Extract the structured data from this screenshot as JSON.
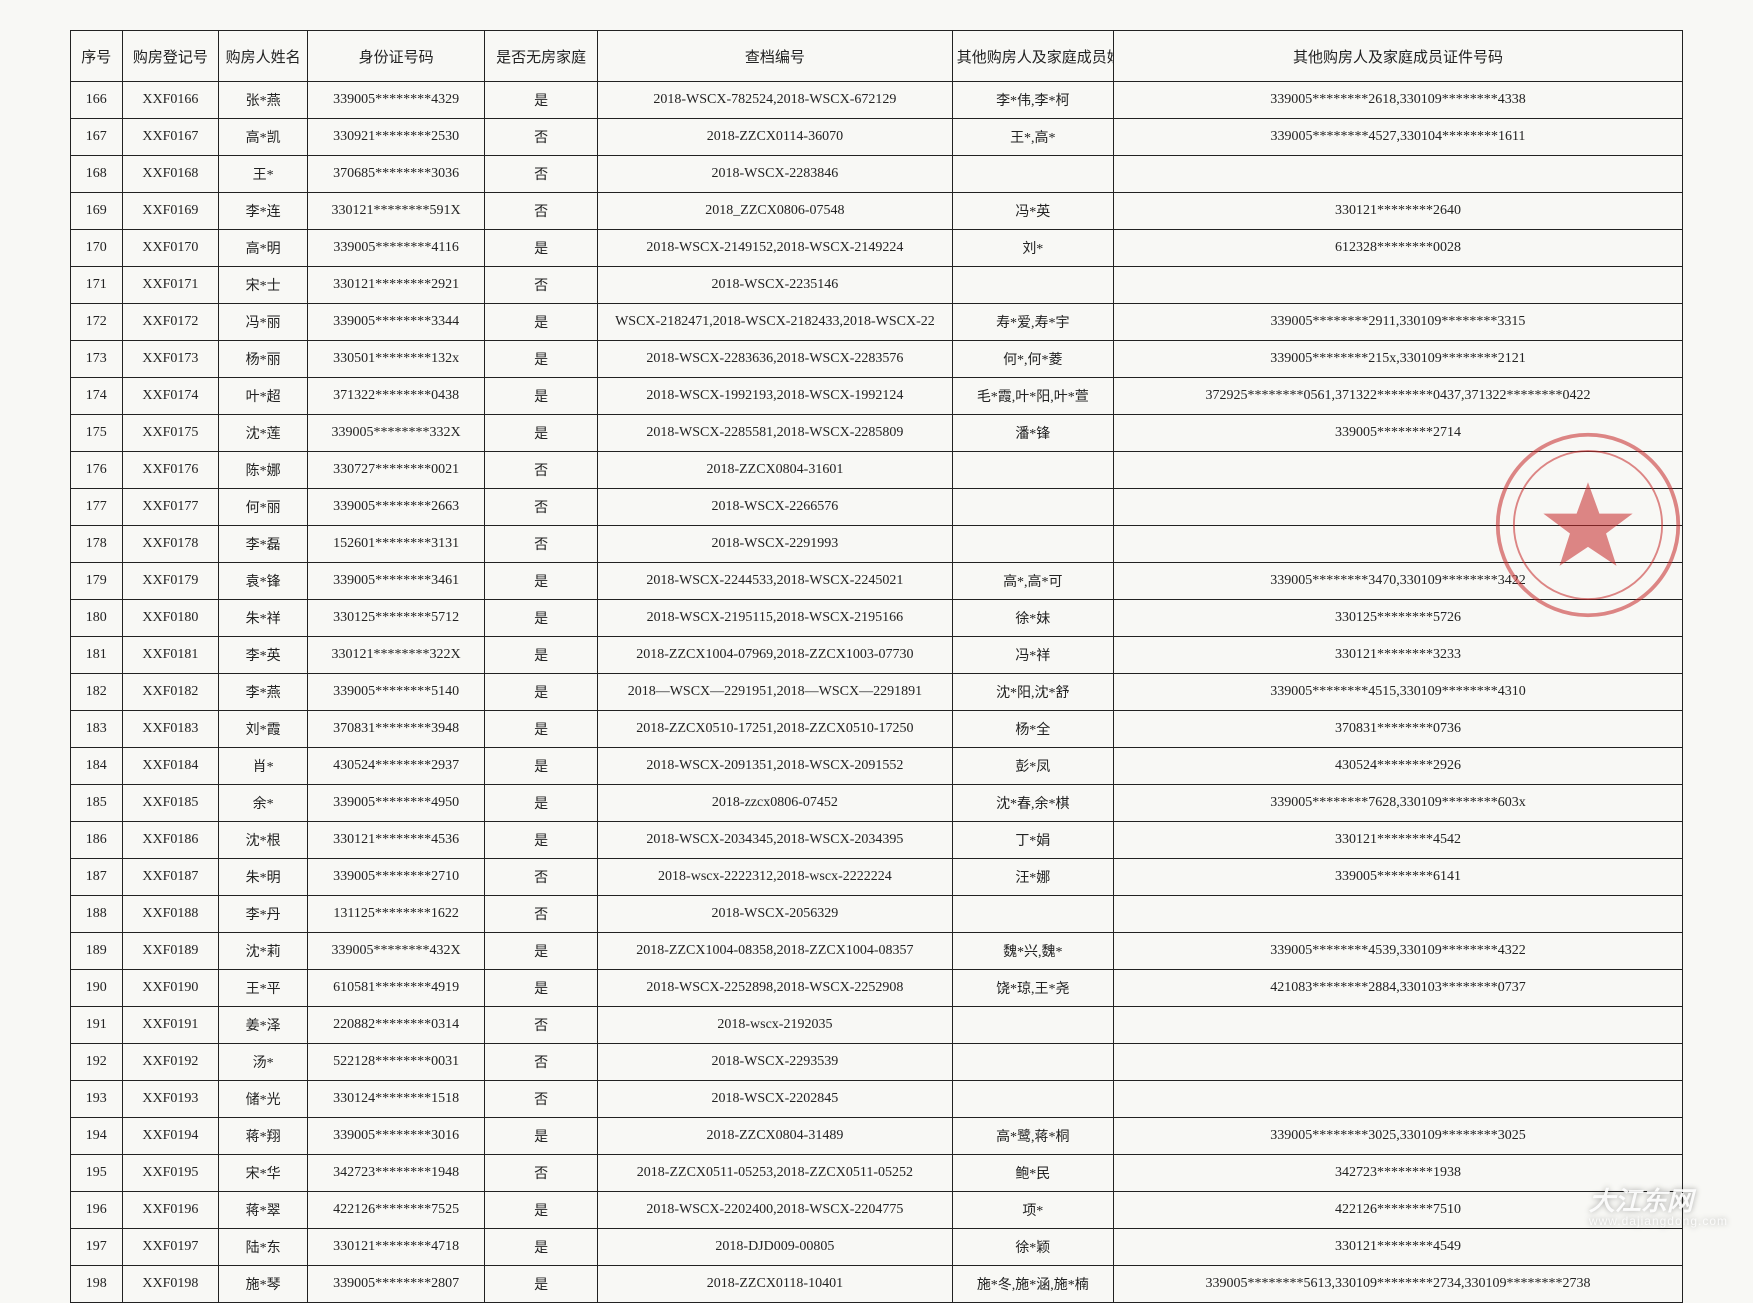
{
  "columns": [
    {
      "key": "seq",
      "label": "序号",
      "width": "3.2%"
    },
    {
      "key": "reg",
      "label": "购房登记号",
      "width": "6%"
    },
    {
      "key": "name",
      "label": "购房人姓名",
      "width": "5.5%"
    },
    {
      "key": "id",
      "label": "身份证号码",
      "width": "11%"
    },
    {
      "key": "nohouse",
      "label": "是否无房家庭",
      "width": "7%"
    },
    {
      "key": "archive",
      "label": "查档编号",
      "width": "22%"
    },
    {
      "key": "others",
      "label": "其他购房人及家庭成员姓名",
      "width": "10%"
    },
    {
      "key": "otherids",
      "label": "其他购房人及家庭成员证件号码",
      "width": "35.3%"
    }
  ],
  "rows": [
    {
      "seq": "166",
      "reg": "XXF0166",
      "name": "张*燕",
      "id": "339005********4329",
      "nohouse": "是",
      "archive": "2018-WSCX-782524,2018-WSCX-672129",
      "others": "李*伟,李*柯",
      "otherids": "339005********2618,330109********4338"
    },
    {
      "seq": "167",
      "reg": "XXF0167",
      "name": "高*凯",
      "id": "330921********2530",
      "nohouse": "否",
      "archive": "2018-ZZCX0114-36070",
      "others": "王*,高*",
      "otherids": "339005********4527,330104********1611"
    },
    {
      "seq": "168",
      "reg": "XXF0168",
      "name": "王*",
      "id": "370685********3036",
      "nohouse": "否",
      "archive": "2018-WSCX-2283846",
      "others": "",
      "otherids": ""
    },
    {
      "seq": "169",
      "reg": "XXF0169",
      "name": "李*连",
      "id": "330121********591X",
      "nohouse": "否",
      "archive": "2018_ZZCX0806-07548",
      "others": "冯*英",
      "otherids": "330121********2640"
    },
    {
      "seq": "170",
      "reg": "XXF0170",
      "name": "高*明",
      "id": "339005********4116",
      "nohouse": "是",
      "archive": "2018-WSCX-2149152,2018-WSCX-2149224",
      "others": "刘*",
      "otherids": "612328********0028"
    },
    {
      "seq": "171",
      "reg": "XXF0171",
      "name": "宋*士",
      "id": "330121********2921",
      "nohouse": "否",
      "archive": "2018-WSCX-2235146",
      "others": "",
      "otherids": ""
    },
    {
      "seq": "172",
      "reg": "XXF0172",
      "name": "冯*丽",
      "id": "339005********3344",
      "nohouse": "是",
      "archive": "WSCX-2182471,2018-WSCX-2182433,2018-WSCX-22",
      "others": "寿*爱,寿*宇",
      "otherids": "339005********2911,330109********3315"
    },
    {
      "seq": "173",
      "reg": "XXF0173",
      "name": "杨*丽",
      "id": "330501********132x",
      "nohouse": "是",
      "archive": "2018-WSCX-2283636,2018-WSCX-2283576",
      "others": "何*,何*菱",
      "otherids": "339005********215x,330109********2121"
    },
    {
      "seq": "174",
      "reg": "XXF0174",
      "name": "叶*超",
      "id": "371322********0438",
      "nohouse": "是",
      "archive": "2018-WSCX-1992193,2018-WSCX-1992124",
      "others": "毛*霞,叶*阳,叶*萱",
      "otherids": "372925********0561,371322********0437,371322********0422"
    },
    {
      "seq": "175",
      "reg": "XXF0175",
      "name": "沈*莲",
      "id": "339005********332X",
      "nohouse": "是",
      "archive": "2018-WSCX-2285581,2018-WSCX-2285809",
      "others": "潘*锋",
      "otherids": "339005********2714"
    },
    {
      "seq": "176",
      "reg": "XXF0176",
      "name": "陈*娜",
      "id": "330727********0021",
      "nohouse": "否",
      "archive": "2018-ZZCX0804-31601",
      "others": "",
      "otherids": ""
    },
    {
      "seq": "177",
      "reg": "XXF0177",
      "name": "何*丽",
      "id": "339005********2663",
      "nohouse": "否",
      "archive": "2018-WSCX-2266576",
      "others": "",
      "otherids": ""
    },
    {
      "seq": "178",
      "reg": "XXF0178",
      "name": "李*磊",
      "id": "152601********3131",
      "nohouse": "否",
      "archive": "2018-WSCX-2291993",
      "others": "",
      "otherids": ""
    },
    {
      "seq": "179",
      "reg": "XXF0179",
      "name": "袁*锋",
      "id": "339005********3461",
      "nohouse": "是",
      "archive": "2018-WSCX-2244533,2018-WSCX-2245021",
      "others": "高*,高*可",
      "otherids": "339005********3470,330109********3422"
    },
    {
      "seq": "180",
      "reg": "XXF0180",
      "name": "朱*祥",
      "id": "330125********5712",
      "nohouse": "是",
      "archive": "2018-WSCX-2195115,2018-WSCX-2195166",
      "others": "徐*妹",
      "otherids": "330125********5726"
    },
    {
      "seq": "181",
      "reg": "XXF0181",
      "name": "李*英",
      "id": "330121********322X",
      "nohouse": "是",
      "archive": "2018-ZZCX1004-07969,2018-ZZCX1003-07730",
      "others": "冯*祥",
      "otherids": "330121********3233"
    },
    {
      "seq": "182",
      "reg": "XXF0182",
      "name": "李*燕",
      "id": "339005********5140",
      "nohouse": "是",
      "archive": "2018—WSCX—2291951,2018—WSCX—2291891",
      "others": "沈*阳,沈*舒",
      "otherids": "339005********4515,330109********4310"
    },
    {
      "seq": "183",
      "reg": "XXF0183",
      "name": "刘*霞",
      "id": "370831********3948",
      "nohouse": "是",
      "archive": "2018-ZZCX0510-17251,2018-ZZCX0510-17250",
      "others": "杨*全",
      "otherids": "370831********0736"
    },
    {
      "seq": "184",
      "reg": "XXF0184",
      "name": "肖*",
      "id": "430524********2937",
      "nohouse": "是",
      "archive": "2018-WSCX-2091351,2018-WSCX-2091552",
      "others": "彭*凤",
      "otherids": "430524********2926"
    },
    {
      "seq": "185",
      "reg": "XXF0185",
      "name": "余*",
      "id": "339005********4950",
      "nohouse": "是",
      "archive": "2018-zzcx0806-07452",
      "others": "沈*春,余*棋",
      "otherids": "339005********7628,330109********603x"
    },
    {
      "seq": "186",
      "reg": "XXF0186",
      "name": "沈*根",
      "id": "330121********4536",
      "nohouse": "是",
      "archive": "2018-WSCX-2034345,2018-WSCX-2034395",
      "others": "丁*娟",
      "otherids": "330121********4542"
    },
    {
      "seq": "187",
      "reg": "XXF0187",
      "name": "朱*明",
      "id": "339005********2710",
      "nohouse": "否",
      "archive": "2018-wscx-2222312,2018-wscx-2222224",
      "others": "汪*娜",
      "otherids": "339005********6141"
    },
    {
      "seq": "188",
      "reg": "XXF0188",
      "name": "李*丹",
      "id": "131125********1622",
      "nohouse": "否",
      "archive": "2018-WSCX-2056329",
      "others": "",
      "otherids": ""
    },
    {
      "seq": "189",
      "reg": "XXF0189",
      "name": "沈*莉",
      "id": "339005********432X",
      "nohouse": "是",
      "archive": "2018-ZZCX1004-08358,2018-ZZCX1004-08357",
      "others": "魏*兴,魏*",
      "otherids": "339005********4539,330109********4322"
    },
    {
      "seq": "190",
      "reg": "XXF0190",
      "name": "王*平",
      "id": "610581********4919",
      "nohouse": "是",
      "archive": "2018-WSCX-2252898,2018-WSCX-2252908",
      "others": "饶*琼,王*尧",
      "otherids": "421083********2884,330103********0737"
    },
    {
      "seq": "191",
      "reg": "XXF0191",
      "name": "姜*泽",
      "id": "220882********0314",
      "nohouse": "否",
      "archive": "2018-wscx-2192035",
      "others": "",
      "otherids": ""
    },
    {
      "seq": "192",
      "reg": "XXF0192",
      "name": "汤*",
      "id": "522128********0031",
      "nohouse": "否",
      "archive": "2018-WSCX-2293539",
      "others": "",
      "otherids": ""
    },
    {
      "seq": "193",
      "reg": "XXF0193",
      "name": "储*光",
      "id": "330124********1518",
      "nohouse": "否",
      "archive": "2018-WSCX-2202845",
      "others": "",
      "otherids": ""
    },
    {
      "seq": "194",
      "reg": "XXF0194",
      "name": "蒋*翔",
      "id": "339005********3016",
      "nohouse": "是",
      "archive": "2018-ZZCX0804-31489",
      "others": "高*鹭,蒋*桐",
      "otherids": "339005********3025,330109********3025"
    },
    {
      "seq": "195",
      "reg": "XXF0195",
      "name": "宋*华",
      "id": "342723********1948",
      "nohouse": "否",
      "archive": "2018-ZZCX0511-05253,2018-ZZCX0511-05252",
      "others": "鲍*民",
      "otherids": "342723********1938"
    },
    {
      "seq": "196",
      "reg": "XXF0196",
      "name": "蒋*翠",
      "id": "422126********7525",
      "nohouse": "是",
      "archive": "2018-WSCX-2202400,2018-WSCX-2204775",
      "others": "项*",
      "otherids": "422126********7510"
    },
    {
      "seq": "197",
      "reg": "XXF0197",
      "name": "陆*东",
      "id": "330121********4718",
      "nohouse": "是",
      "archive": "2018-DJD009-00805",
      "others": "徐*颖",
      "otherids": "330121********4549"
    },
    {
      "seq": "198",
      "reg": "XXF0198",
      "name": "施*琴",
      "id": "339005********2807",
      "nohouse": "是",
      "archive": "2018-ZZCX0118-10401",
      "others": "施*冬,施*涵,施*楠",
      "otherids": "339005********5613,330109********2734,330109********2738"
    }
  ],
  "seal_color": "#c62828",
  "watermark_text": "大江东网",
  "watermark_sub": "www.dajiangdong.com"
}
